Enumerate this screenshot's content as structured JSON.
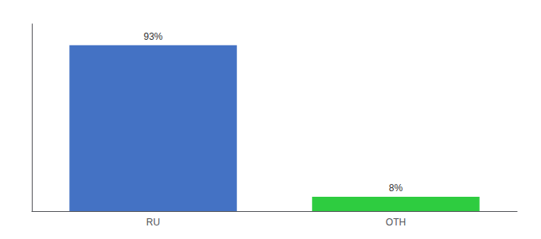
{
  "chart_data": {
    "type": "bar",
    "categories": [
      "RU",
      "OTH"
    ],
    "values": [
      93,
      8
    ],
    "colors": [
      "#4472c4",
      "#2ecc40"
    ],
    "data_labels": true,
    "value_labels": [
      "93%",
      "8%"
    ],
    "ylim": [
      0,
      105
    ],
    "yticks": [],
    "grid": false,
    "tick_labels": "x"
  }
}
